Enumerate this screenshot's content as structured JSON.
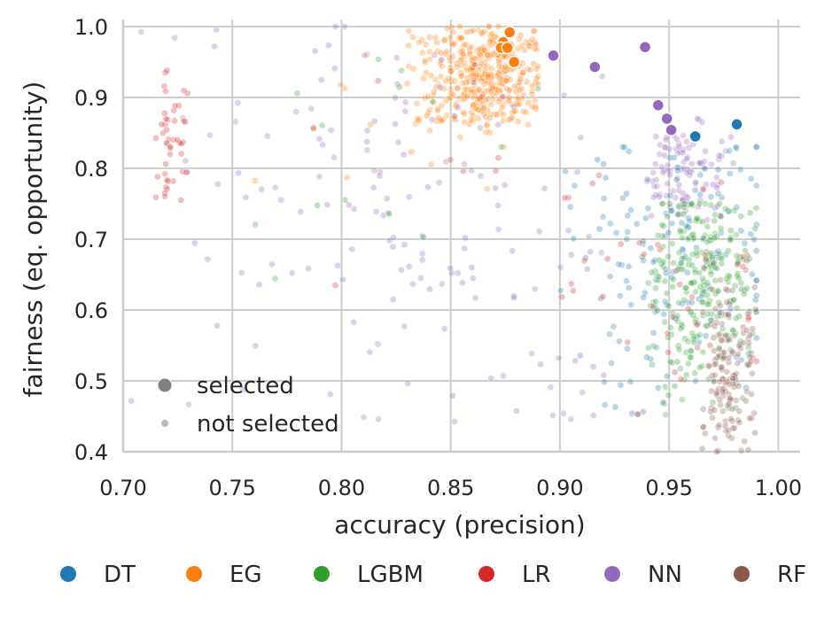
{
  "chart_data": {
    "type": "scatter",
    "title": "",
    "xlabel": "accuracy (precision)",
    "ylabel": "fairness (eq. opportunity)",
    "xlim": [
      0.7,
      1.01
    ],
    "ylim": [
      0.4,
      1.01
    ],
    "xticks": [
      0.7,
      0.75,
      0.8,
      0.85,
      0.9,
      0.95,
      1.0
    ],
    "xtick_labels": [
      "0.70",
      "0.75",
      "0.80",
      "0.85",
      "0.90",
      "0.95",
      "1.00"
    ],
    "yticks": [
      0.4,
      0.5,
      0.6,
      0.7,
      0.8,
      0.9,
      1.0
    ],
    "ytick_labels": [
      "0.4",
      "0.5",
      "0.6",
      "0.7",
      "0.8",
      "0.9",
      "1.0"
    ],
    "grid": true,
    "size_legend": {
      "position": "lower-left",
      "entries": [
        {
          "label": "selected",
          "size": "large"
        },
        {
          "label": "not selected",
          "size": "small"
        }
      ]
    },
    "hue_legend": {
      "position": "bottom",
      "entries": [
        {
          "label": "DT",
          "color": "#1f77b4"
        },
        {
          "label": "EG",
          "color": "#ff7f0e"
        },
        {
          "label": "LGBM",
          "color": "#2ca02c"
        },
        {
          "label": "LR",
          "color": "#d62728"
        },
        {
          "label": "NN",
          "color": "#9467bd"
        },
        {
          "label": "RF",
          "color": "#8c564b"
        }
      ]
    },
    "selected_series": [
      {
        "name": "DT",
        "color": "#1f77b4",
        "points": [
          [
            0.962,
            0.845
          ],
          [
            0.981,
            0.862
          ]
        ]
      },
      {
        "name": "EG",
        "color": "#ff7f0e",
        "points": [
          [
            0.874,
            0.978
          ],
          [
            0.877,
            0.992
          ],
          [
            0.873,
            0.97
          ],
          [
            0.876,
            0.97
          ],
          [
            0.879,
            0.95
          ]
        ]
      },
      {
        "name": "NN",
        "color": "#9467bd",
        "points": [
          [
            0.897,
            0.959
          ],
          [
            0.916,
            0.943
          ],
          [
            0.939,
            0.971
          ],
          [
            0.945,
            0.889
          ],
          [
            0.949,
            0.87
          ],
          [
            0.951,
            0.854
          ]
        ]
      }
    ],
    "not_selected_clusters": [
      {
        "name": "EG",
        "color": "#ff7f0e",
        "count": 420,
        "x": [
          0.83,
          0.89
        ],
        "y": [
          0.85,
          1.0
        ],
        "center": [
          0.865,
          0.935
        ]
      },
      {
        "name": "EG",
        "color": "#ff7f0e",
        "count": 18,
        "x": [
          0.76,
          0.89
        ],
        "y": [
          0.72,
          1.0
        ],
        "center": [
          0.83,
          0.88
        ]
      },
      {
        "name": "NN",
        "color": "#9467bd",
        "count": 160,
        "x": [
          0.7,
          0.92
        ],
        "y": [
          0.4,
          1.0
        ],
        "center": [
          0.82,
          0.73
        ]
      },
      {
        "name": "NN",
        "color": "#9467bd",
        "count": 110,
        "x": [
          0.94,
          0.98
        ],
        "y": [
          0.72,
          0.87
        ],
        "center": [
          0.955,
          0.8
        ]
      },
      {
        "name": "DT",
        "color": "#1f77b4",
        "count": 170,
        "x": [
          0.9,
          0.99
        ],
        "y": [
          0.45,
          0.83
        ],
        "center": [
          0.96,
          0.68
        ]
      },
      {
        "name": "LGBM",
        "color": "#2ca02c",
        "count": 260,
        "x": [
          0.94,
          0.99
        ],
        "y": [
          0.45,
          0.75
        ],
        "center": [
          0.965,
          0.64
        ]
      },
      {
        "name": "LGBM",
        "color": "#2ca02c",
        "count": 14,
        "x": [
          0.75,
          0.9
        ],
        "y": [
          0.55,
          0.98
        ],
        "center": [
          0.82,
          0.8
        ]
      },
      {
        "name": "LR",
        "color": "#d62728",
        "count": 45,
        "x": [
          0.715,
          0.73
        ],
        "y": [
          0.74,
          0.94
        ],
        "center": [
          0.721,
          0.83
        ]
      },
      {
        "name": "LR",
        "color": "#d62728",
        "count": 40,
        "x": [
          0.9,
          0.99
        ],
        "y": [
          0.43,
          0.79
        ],
        "center": [
          0.955,
          0.62
        ]
      },
      {
        "name": "LR",
        "color": "#d62728",
        "count": 8,
        "x": [
          0.75,
          0.9
        ],
        "y": [
          0.62,
          0.95
        ],
        "center": [
          0.82,
          0.8
        ]
      },
      {
        "name": "RF",
        "color": "#8c564b",
        "count": 150,
        "x": [
          0.965,
          0.99
        ],
        "y": [
          0.4,
          0.68
        ],
        "center": [
          0.978,
          0.52
        ]
      }
    ]
  }
}
